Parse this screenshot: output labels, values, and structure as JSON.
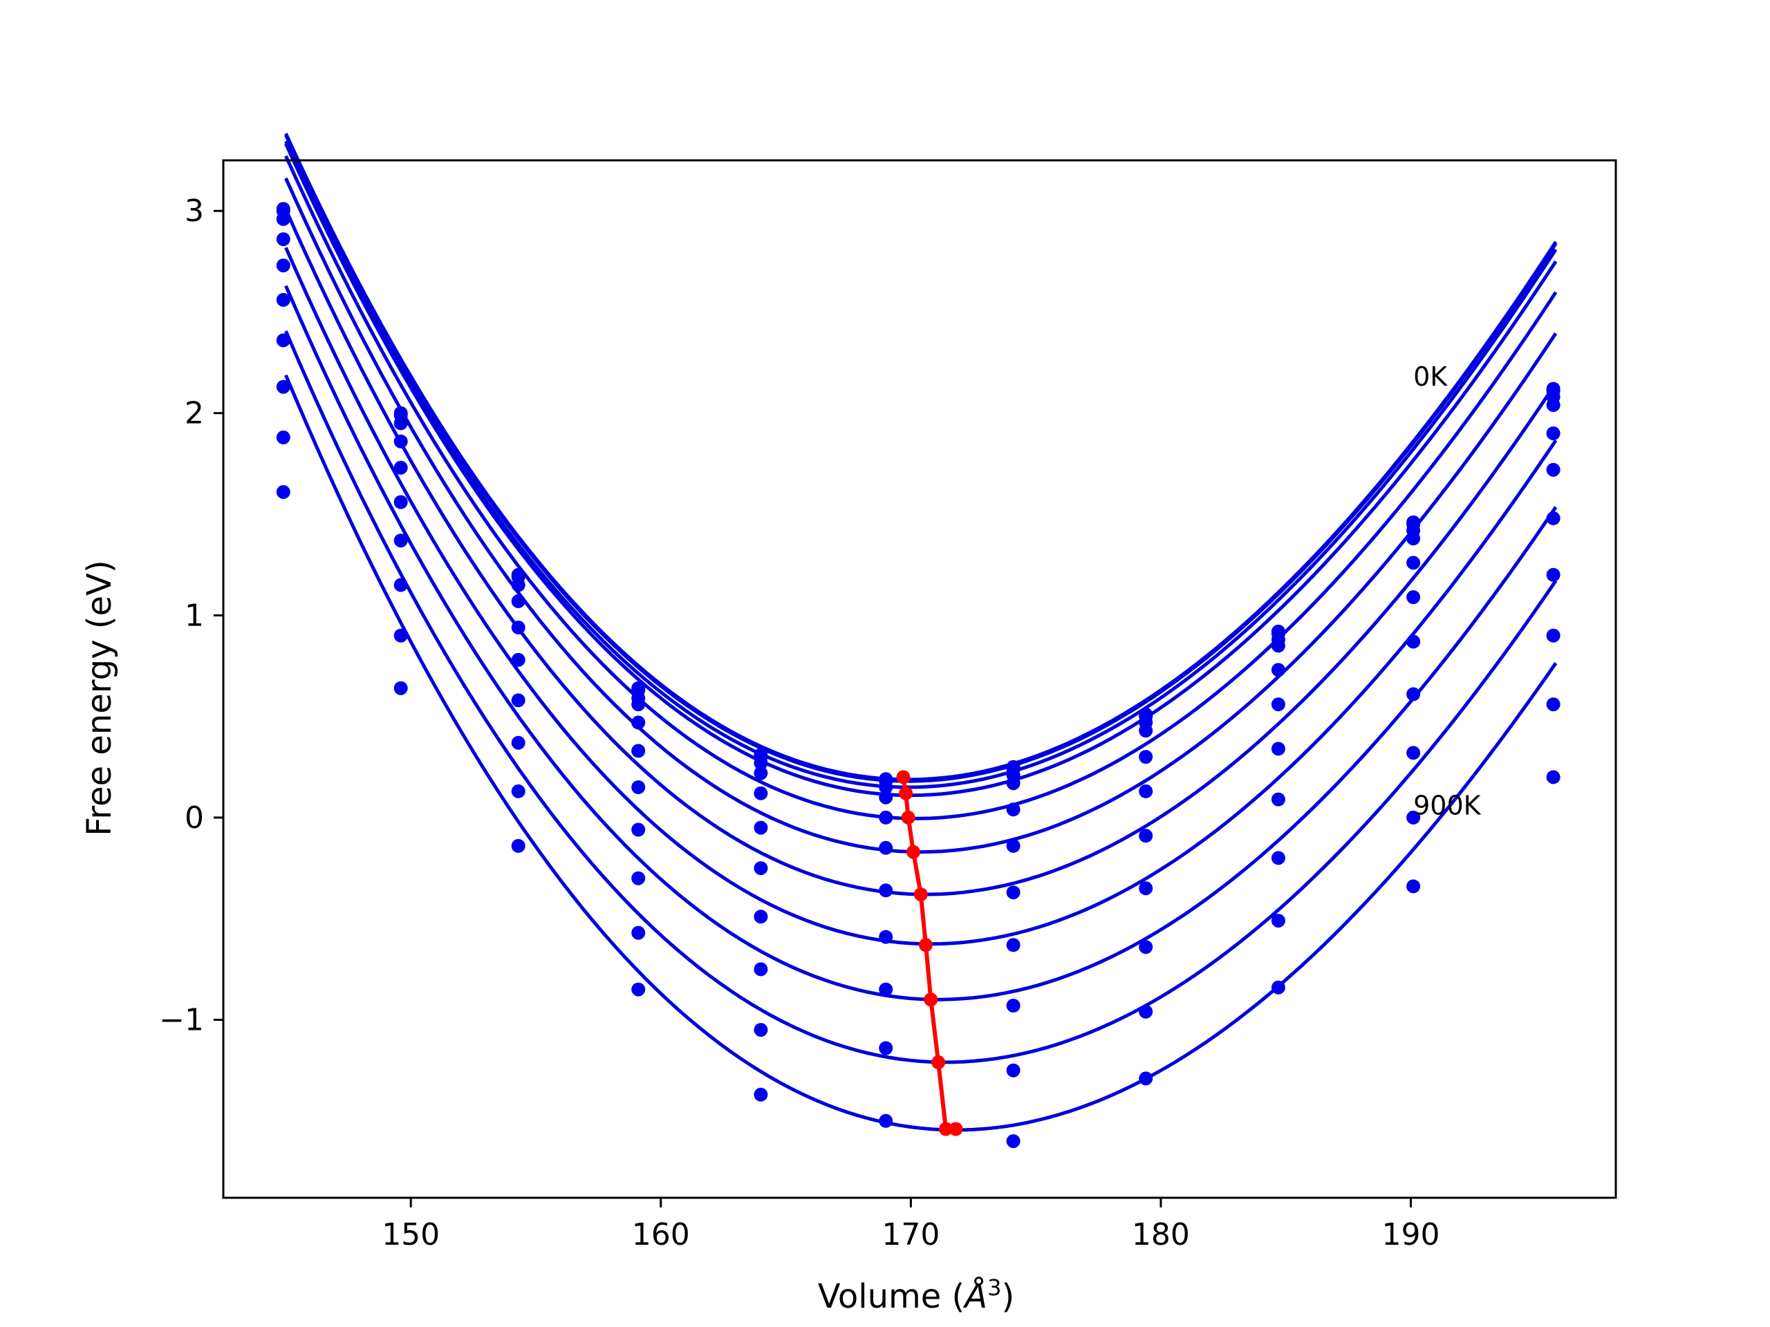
{
  "chart_data": {
    "type": "line",
    "title": "",
    "xlabel": "Volume",
    "xlabel_unit": "Å",
    "xlabel_exp": "3",
    "ylabel": "Free energy (eV)",
    "xlim": [
      142.5,
      198.2
    ],
    "ylim": [
      -1.88,
      3.25
    ],
    "xticks": [
      150,
      160,
      170,
      180,
      190
    ],
    "yticks": [
      3,
      2,
      1,
      0,
      -1
    ],
    "ytick_labels": [
      "3",
      "2",
      "1",
      "0",
      "−1"
    ],
    "grid": false,
    "legend": "none",
    "annotations": [
      {
        "text": "0K",
        "x": 190.1,
        "y": 2.18
      },
      {
        "text": "900K",
        "x": 190.1,
        "y": 0.06
      }
    ],
    "colors": {
      "curves": "#0000dd",
      "points": "#0000ee",
      "minima": "#ff0000"
    },
    "fit_range": [
      145.0,
      195.8
    ],
    "volumes": [
      144.9,
      149.6,
      154.3,
      159.1,
      164.0,
      169.0,
      174.1,
      179.4,
      184.7,
      190.1,
      195.7
    ],
    "series": [
      {
        "points": [
          3.01,
          2.0,
          1.2,
          0.64,
          0.31,
          0.19,
          0.25,
          0.51,
          0.92,
          1.46,
          2.12
        ],
        "fit": {
          "v0": 169.9,
          "e0": 0.188,
          "a": 0.00457,
          "b": 2.34e-05
        }
      },
      {
        "points": [
          3.0,
          1.99,
          1.19,
          0.63,
          0.3,
          0.18,
          0.24,
          0.5,
          0.91,
          1.45,
          2.11
        ],
        "fit": {
          "v0": 169.9,
          "e0": 0.18,
          "a": 0.00457,
          "b": 2.34e-05
        }
      },
      {
        "points": [
          2.96,
          1.95,
          1.15,
          0.59,
          0.27,
          0.15,
          0.21,
          0.47,
          0.88,
          1.42,
          2.08
        ],
        "fit": {
          "v0": 169.9,
          "e0": 0.15,
          "a": 0.00457,
          "b": 2.34e-05
        }
      },
      {
        "points": [
          2.86,
          1.86,
          1.07,
          0.56,
          0.22,
          0.1,
          0.17,
          0.43,
          0.85,
          1.38,
          2.04
        ],
        "fit": {
          "v0": 170.0,
          "e0": 0.11,
          "a": 0.00457,
          "b": 2.34e-05
        }
      },
      {
        "points": [
          2.73,
          1.73,
          0.94,
          0.47,
          0.12,
          0.0,
          0.04,
          0.3,
          0.73,
          1.26,
          1.9
        ],
        "fit": {
          "v0": 170.2,
          "e0": -0.005,
          "a": 0.00457,
          "b": 2.34e-05
        }
      },
      {
        "points": [
          2.56,
          1.56,
          0.78,
          0.33,
          -0.05,
          -0.15,
          -0.14,
          0.13,
          0.56,
          1.09,
          1.72
        ],
        "fit": {
          "v0": 170.4,
          "e0": -0.17,
          "a": 0.00457,
          "b": 2.34e-05
        }
      },
      {
        "points": [
          2.36,
          1.37,
          0.58,
          0.15,
          -0.25,
          -0.36,
          -0.37,
          -0.09,
          0.34,
          0.87,
          1.48
        ],
        "fit": {
          "v0": 170.6,
          "e0": -0.38,
          "a": 0.00457,
          "b": 2.34e-05
        }
      },
      {
        "points": [
          2.13,
          1.15,
          0.37,
          -0.06,
          -0.49,
          -0.59,
          -0.63,
          -0.35,
          0.09,
          0.61,
          1.2
        ],
        "fit": {
          "v0": 170.8,
          "e0": -0.625,
          "a": 0.00457,
          "b": 2.34e-05
        }
      },
      {
        "points": [
          1.88,
          0.9,
          0.13,
          -0.3,
          -0.75,
          -0.85,
          -0.93,
          -0.64,
          -0.2,
          0.32,
          0.9
        ],
        "fit": {
          "v0": 171.1,
          "e0": -0.9,
          "a": 0.00457,
          "b": 2.34e-05
        }
      },
      {
        "points": [
          1.61,
          0.64,
          -0.14,
          -0.57,
          -1.05,
          -1.14,
          -1.25,
          -0.96,
          -0.51,
          0.0,
          0.56
        ],
        "fit": {
          "v0": 171.4,
          "e0": -1.21,
          "a": 0.00457,
          "b": 2.34e-05
        }
      },
      {
        "points": [
          null,
          null,
          null,
          -0.85,
          -1.37,
          -1.5,
          -1.6,
          -1.29,
          -0.84,
          -0.34,
          0.2
        ],
        "fit": {
          "v0": 171.8,
          "e0": -1.545,
          "a": 0.00457,
          "b": 2.34e-05
        }
      }
    ],
    "minima": {
      "x": [
        169.7,
        169.8,
        169.9,
        170.1,
        170.4,
        170.6,
        170.8,
        171.1,
        171.4,
        171.8
      ],
      "y": [
        0.2,
        0.12,
        0.0,
        -0.17,
        -0.38,
        -0.63,
        -0.9,
        -1.21,
        -1.54,
        -1.54
      ]
    }
  }
}
